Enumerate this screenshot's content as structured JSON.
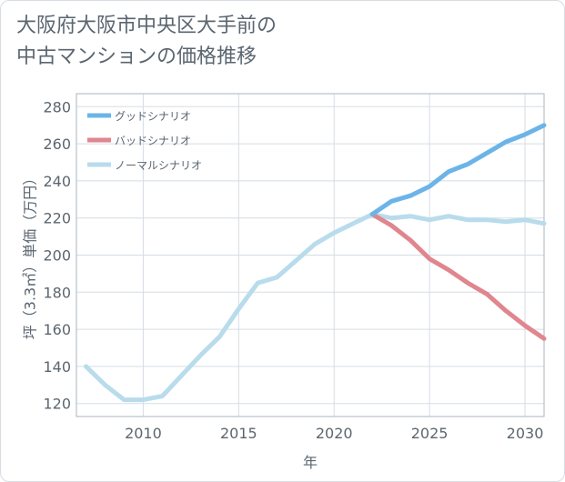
{
  "chart_data": {
    "type": "line",
    "title": "大阪府大阪市中央区大手前の\n中古マンションの価格推移",
    "xlabel": "年",
    "ylabel": "坪（3.3㎡）単価（万円）",
    "xlim": [
      2006.5,
      2031
    ],
    "ylim": [
      113,
      287
    ],
    "x_ticks": [
      2010,
      2015,
      2020,
      2025,
      2030
    ],
    "y_ticks": [
      120,
      140,
      160,
      180,
      200,
      220,
      240,
      260,
      280
    ],
    "grid": true,
    "legend_position": "top-left",
    "series": [
      {
        "name": "グッドシナリオ",
        "color": "#6cb4e8",
        "x": [
          2022,
          2023,
          2024,
          2025,
          2026,
          2027,
          2028,
          2029,
          2030,
          2031
        ],
        "y": [
          222,
          229,
          232,
          237,
          245,
          249,
          255,
          261,
          265,
          270
        ]
      },
      {
        "name": "バッドシナリオ",
        "color": "#e0868f",
        "x": [
          2022,
          2023,
          2024,
          2025,
          2026,
          2027,
          2028,
          2029,
          2030,
          2031
        ],
        "y": [
          222,
          216,
          208,
          198,
          192,
          185,
          179,
          170,
          162,
          155
        ]
      },
      {
        "name": "ノーマルシナリオ",
        "color": "#b8dcec",
        "x": [
          2007,
          2008,
          2009,
          2010,
          2011,
          2012,
          2013,
          2014,
          2015,
          2016,
          2017,
          2018,
          2019,
          2020,
          2021,
          2022,
          2023,
          2024,
          2025,
          2026,
          2027,
          2028,
          2029,
          2030,
          2031
        ],
        "y": [
          140,
          130,
          122,
          122,
          124,
          135,
          146,
          156,
          171,
          185,
          188,
          197,
          206,
          212,
          217,
          222,
          220,
          221,
          219,
          221,
          219,
          219,
          218,
          219,
          217
        ]
      }
    ]
  }
}
